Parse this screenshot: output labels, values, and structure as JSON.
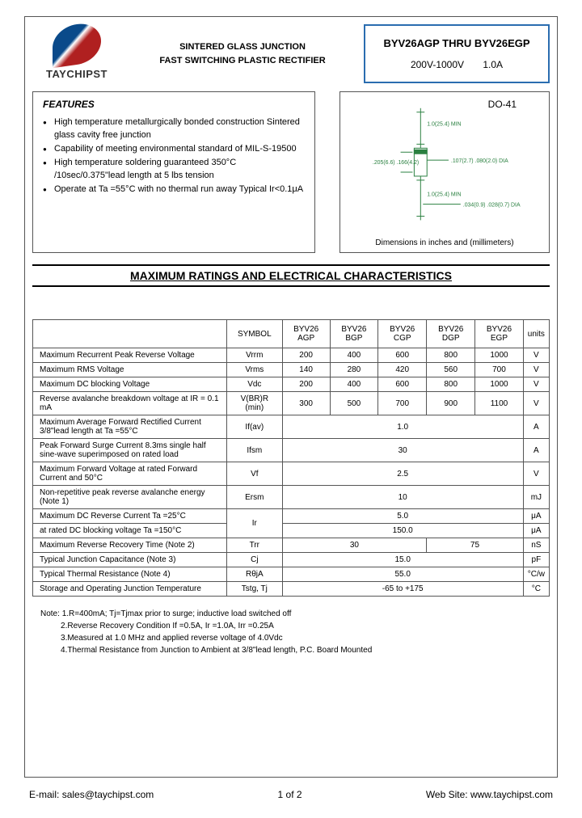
{
  "company": {
    "name": "TAYCHIPST"
  },
  "header": {
    "line1": "SINTERED GLASS JUNCTION",
    "line2": "FAST SWITCHING PLASTIC RECTIFIER"
  },
  "partnum": {
    "range": "BYV26AGP THRU BYV26EGP",
    "spec": "200V-1000V    1.0A"
  },
  "features": {
    "title": "FEATURES",
    "items": [
      "High temperature metallurgically bonded construction Sintered glass cavity free junction",
      "Capability of meeting environmental standard of MIL-S-19500",
      "High temperature soldering guaranteed 350°C /10sec/0.375\"lead length at 5 lbs tension",
      "Operate at Ta =55°C with no thermal run away Typical Ir<0.1μA"
    ]
  },
  "diagram": {
    "package": "DO-41",
    "caption": "Dimensions in inches and (millimeters)",
    "labels": {
      "top_lead": "1.0(25.4) MIN",
      "body_h": ".205(6.6) .166(4.2)",
      "body_w": ".107(2.7) .080(2.0) DIA",
      "bot_lead": "1.0(25.4) MIN",
      "lead_dia": ".034(0.9) .028(0.7) DIA"
    },
    "colors": {
      "line": "#2a8040"
    }
  },
  "section_title": "MAXIMUM RATINGS AND ELECTRICAL CHARACTERISTICS",
  "table": {
    "columns": [
      "",
      "SYMBOL",
      "BYV26 AGP",
      "BYV26 BGP",
      "BYV26 CGP",
      "BYV26 DGP",
      "BYV26 EGP",
      "units"
    ],
    "rows": [
      {
        "param": "Maximum Recurrent Peak Reverse Voltage",
        "symbol": "Vrrm",
        "v": [
          "200",
          "400",
          "600",
          "800",
          "1000"
        ],
        "unit": "V",
        "span": false
      },
      {
        "param": "Maximum RMS Voltage",
        "symbol": "Vrms",
        "v": [
          "140",
          "280",
          "420",
          "560",
          "700"
        ],
        "unit": "V",
        "span": false
      },
      {
        "param": "Maximum DC blocking Voltage",
        "symbol": "Vdc",
        "v": [
          "200",
          "400",
          "600",
          "800",
          "1000"
        ],
        "unit": "V",
        "span": false
      },
      {
        "param": "Reverse avalanche breakdown voltage at IR = 0.1 mA",
        "symbol": "V(BR)R (min)",
        "v": [
          "300",
          "500",
          "700",
          "900",
          "1100"
        ],
        "unit": "V",
        "span": false
      },
      {
        "param": "Maximum Average Forward Rectified Current 3/8\"lead length at Ta =55°C",
        "symbol": "If(av)",
        "merged": "1.0",
        "unit": "A",
        "span": true
      },
      {
        "param": "Peak Forward Surge Current 8.3ms single half sine-wave superimposed on rated load",
        "symbol": "Ifsm",
        "merged": "30",
        "unit": "A",
        "span": true
      },
      {
        "param": "Maximum Forward Voltage at rated Forward Current and 50°C",
        "symbol": "Vf",
        "merged": "2.5",
        "unit": "V",
        "span": true
      },
      {
        "param": "Non-repetitive peak reverse avalanche energy (Note 1)",
        "symbol": "Ersm",
        "merged": "10",
        "unit": "mJ",
        "span": true
      },
      {
        "param": "Maximum DC Reverse Current    Ta =25°C",
        "symbol_rowspan": "Ir",
        "merged": "5.0",
        "unit": "μA",
        "span": true
      },
      {
        "param": "at rated DC blocking voltage    Ta =150°C",
        "symbol_skip": true,
        "merged": "150.0",
        "unit": "μA",
        "span": true
      },
      {
        "param": "Maximum Reverse Recovery Time    (Note 2)",
        "symbol": "Trr",
        "split": [
          "30",
          "75"
        ],
        "unit": "nS",
        "span": "split"
      },
      {
        "param": "Typical Junction Capacitance    (Note 3)",
        "symbol": "Cj",
        "merged": "15.0",
        "unit": "pF",
        "span": true
      },
      {
        "param": "Typical Thermal Resistance    (Note 4)",
        "symbol": "RθjA",
        "merged": "55.0",
        "unit": "°C/w",
        "span": true
      },
      {
        "param": "Storage and Operating Junction Temperature",
        "symbol": "Tstg, Tj",
        "merged": "-65 to +175",
        "unit": "°C",
        "span": true
      }
    ]
  },
  "notes": {
    "lead": "Note:",
    "items": [
      "1.R=400mA; Tj=Tjmax prior to surge; inductive load switched off",
      "2.Reverse Recovery Condition If =0.5A, Ir =1.0A, Irr =0.25A",
      "3.Measured at 1.0 MHz and applied reverse voltage of 4.0Vdc",
      "4.Thermal Resistance from Junction to Ambient at 3/8\"lead length, P.C. Board Mounted"
    ]
  },
  "footer": {
    "email_label": "E-mail:",
    "email": "sales@taychipst.com",
    "page": "1 of 2",
    "web_label": "Web Site:",
    "web": "www.taychipst.com"
  }
}
